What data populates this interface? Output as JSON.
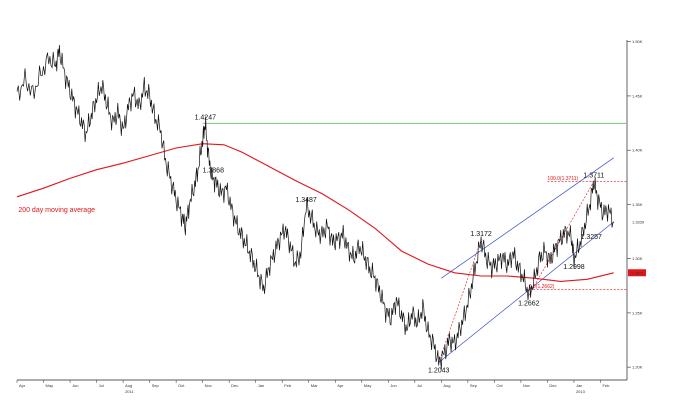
{
  "chart_data": {
    "type": "line",
    "title": "",
    "xlabel": "",
    "ylabel": "",
    "ylim": [
      1.19,
      1.52
    ],
    "price_axis_ticks": [
      {
        "value": 1.5,
        "label": "1.50K"
      },
      {
        "value": 1.45,
        "label": "1.45K"
      },
      {
        "value": 1.4,
        "label": "1.40K"
      },
      {
        "value": 1.35,
        "label": "1.35K"
      },
      {
        "value": 1.3,
        "label": "1.30K"
      },
      {
        "value": 1.25,
        "label": "1.25K"
      },
      {
        "value": 1.2,
        "label": "1.20K"
      }
    ],
    "last_price": {
      "value": 1.3339,
      "label": "1.3339"
    },
    "ma_last": {
      "value": 1.287,
      "label": "1.2870"
    },
    "x_months": [
      "Apr",
      "May",
      "Jun",
      "Jul",
      "Aug",
      "Sep",
      "Oct",
      "Nov",
      "Dec",
      "Jan",
      "Feb",
      "Mar",
      "Apr",
      "May",
      "Jun",
      "Jul",
      "Aug",
      "Sep",
      "Oct",
      "Nov",
      "Dec",
      "Jan",
      "Feb"
    ],
    "year_labels": [
      {
        "after_month_index": 4,
        "label": "2011"
      },
      {
        "after_month_index": 21,
        "label": "2013"
      }
    ],
    "price_path": [
      [
        0.0,
        1.45
      ],
      [
        0.3,
        1.465
      ],
      [
        0.6,
        1.452
      ],
      [
        0.9,
        1.47
      ],
      [
        1.2,
        1.485
      ],
      [
        1.45,
        1.478
      ],
      [
        1.6,
        1.492
      ],
      [
        1.8,
        1.47
      ],
      [
        2.0,
        1.455
      ],
      [
        2.2,
        1.44
      ],
      [
        2.4,
        1.428
      ],
      [
        2.6,
        1.415
      ],
      [
        2.8,
        1.432
      ],
      [
        3.0,
        1.448
      ],
      [
        3.2,
        1.46
      ],
      [
        3.4,
        1.442
      ],
      [
        3.6,
        1.425
      ],
      [
        3.8,
        1.435
      ],
      [
        4.0,
        1.418
      ],
      [
        4.2,
        1.44
      ],
      [
        4.4,
        1.452
      ],
      [
        4.6,
        1.44
      ],
      [
        4.8,
        1.458
      ],
      [
        5.0,
        1.45
      ],
      [
        5.2,
        1.43
      ],
      [
        5.4,
        1.42
      ],
      [
        5.6,
        1.39
      ],
      [
        5.8,
        1.372
      ],
      [
        6.0,
        1.355
      ],
      [
        6.2,
        1.34
      ],
      [
        6.35,
        1.33
      ],
      [
        6.5,
        1.35
      ],
      [
        6.7,
        1.368
      ],
      [
        6.85,
        1.385
      ],
      [
        7.0,
        1.41
      ],
      [
        7.1,
        1.4247
      ],
      [
        7.2,
        1.398
      ],
      [
        7.35,
        1.375
      ],
      [
        7.5,
        1.37
      ],
      [
        7.7,
        1.36
      ],
      [
        7.9,
        1.365
      ],
      [
        8.1,
        1.345
      ],
      [
        8.3,
        1.33
      ],
      [
        8.5,
        1.32
      ],
      [
        8.7,
        1.31
      ],
      [
        8.9,
        1.298
      ],
      [
        9.1,
        1.285
      ],
      [
        9.3,
        1.272
      ],
      [
        9.5,
        1.292
      ],
      [
        9.7,
        1.305
      ],
      [
        9.9,
        1.318
      ],
      [
        10.1,
        1.328
      ],
      [
        10.3,
        1.312
      ],
      [
        10.5,
        1.295
      ],
      [
        10.7,
        1.305
      ],
      [
        10.9,
        1.3487
      ],
      [
        11.1,
        1.338
      ],
      [
        11.3,
        1.325
      ],
      [
        11.5,
        1.322
      ],
      [
        11.7,
        1.33
      ],
      [
        11.9,
        1.315
      ],
      [
        12.1,
        1.318
      ],
      [
        12.3,
        1.322
      ],
      [
        12.5,
        1.308
      ],
      [
        12.7,
        1.3
      ],
      [
        12.9,
        1.312
      ],
      [
        13.1,
        1.302
      ],
      [
        13.3,
        1.29
      ],
      [
        13.5,
        1.282
      ],
      [
        13.7,
        1.268
      ],
      [
        13.9,
        1.252
      ],
      [
        14.1,
        1.245
      ],
      [
        14.3,
        1.262
      ],
      [
        14.5,
        1.248
      ],
      [
        14.7,
        1.235
      ],
      [
        14.9,
        1.25
      ],
      [
        15.1,
        1.24
      ],
      [
        15.3,
        1.255
      ],
      [
        15.5,
        1.232
      ],
      [
        15.7,
        1.222
      ],
      [
        15.9,
        1.2043
      ],
      [
        16.1,
        1.212
      ],
      [
        16.3,
        1.225
      ],
      [
        16.5,
        1.222
      ],
      [
        16.7,
        1.235
      ],
      [
        16.9,
        1.25
      ],
      [
        17.1,
        1.27
      ],
      [
        17.3,
        1.295
      ],
      [
        17.5,
        1.3172
      ],
      [
        17.7,
        1.3
      ],
      [
        17.9,
        1.292
      ],
      [
        18.1,
        1.296
      ],
      [
        18.3,
        1.302
      ],
      [
        18.5,
        1.294
      ],
      [
        18.7,
        1.305
      ],
      [
        18.9,
        1.292
      ],
      [
        19.1,
        1.282
      ],
      [
        19.3,
        1.2662
      ],
      [
        19.5,
        1.28
      ],
      [
        19.7,
        1.3
      ],
      [
        19.9,
        1.307
      ],
      [
        20.1,
        1.298
      ],
      [
        20.3,
        1.31
      ],
      [
        20.5,
        1.318
      ],
      [
        20.7,
        1.325
      ],
      [
        20.9,
        1.32
      ],
      [
        21.0,
        1.2998
      ],
      [
        21.2,
        1.312
      ],
      [
        21.4,
        1.33
      ],
      [
        21.6,
        1.35
      ],
      [
        21.75,
        1.3711
      ],
      [
        21.9,
        1.355
      ],
      [
        22.1,
        1.342
      ],
      [
        22.3,
        1.345
      ],
      [
        22.5,
        1.3339
      ]
    ],
    "moving_average_path": [
      [
        0.0,
        1.357
      ],
      [
        1.0,
        1.365
      ],
      [
        2.0,
        1.374
      ],
      [
        3.0,
        1.382
      ],
      [
        4.0,
        1.388
      ],
      [
        5.0,
        1.395
      ],
      [
        6.0,
        1.402
      ],
      [
        7.0,
        1.406
      ],
      [
        7.8,
        1.405
      ],
      [
        8.5,
        1.398
      ],
      [
        9.5,
        1.385
      ],
      [
        10.5,
        1.372
      ],
      [
        11.5,
        1.36
      ],
      [
        12.5,
        1.345
      ],
      [
        13.5,
        1.328
      ],
      [
        14.5,
        1.307
      ],
      [
        15.5,
        1.295
      ],
      [
        16.5,
        1.287
      ],
      [
        17.5,
        1.284
      ],
      [
        18.5,
        1.284
      ],
      [
        19.5,
        1.282
      ],
      [
        20.5,
        1.279
      ],
      [
        21.5,
        1.281
      ],
      [
        22.5,
        1.287
      ]
    ],
    "resistance_line": {
      "value": 1.4247,
      "label": "1.4247"
    },
    "price_labels": [
      {
        "x": 7.1,
        "y": 1.4247,
        "label": "1.4247"
      },
      {
        "x": 7.25,
        "y": 1.3868,
        "label": "1.3868"
      },
      {
        "x": 10.9,
        "y": 1.3487,
        "label": "1.3487"
      },
      {
        "x": 15.9,
        "y": 1.2043,
        "label": "1.2043"
      },
      {
        "x": 17.5,
        "y": 1.3172,
        "label": "1.3172"
      },
      {
        "x": 19.3,
        "y": 1.2662,
        "label": "1.2662"
      },
      {
        "x": 21.0,
        "y": 1.2998,
        "label": "1.2998"
      },
      {
        "x": 21.75,
        "y": 1.3711,
        "label": "1.3711"
      },
      {
        "x": 21.65,
        "y": 1.3257,
        "label": "1.3257"
      }
    ],
    "moving_average_label": "200 day moving average",
    "fib_top": {
      "value": 1.3711,
      "label": "100.0(1.3711)"
    },
    "fib_bottom": {
      "value": 1.2662,
      "label": "0.0(1.2662)"
    },
    "channel_lower": [
      [
        15.9,
        1.2043
      ],
      [
        22.5,
        1.334
      ]
    ],
    "channel_upper": [
      [
        16.0,
        1.282
      ],
      [
        22.5,
        1.393
      ]
    ],
    "fib_diagonal": [
      [
        19.3,
        1.2662
      ],
      [
        21.75,
        1.3711
      ]
    ],
    "fib_diagonal_2": [
      [
        15.9,
        1.2043
      ],
      [
        17.5,
        1.3172
      ]
    ]
  }
}
